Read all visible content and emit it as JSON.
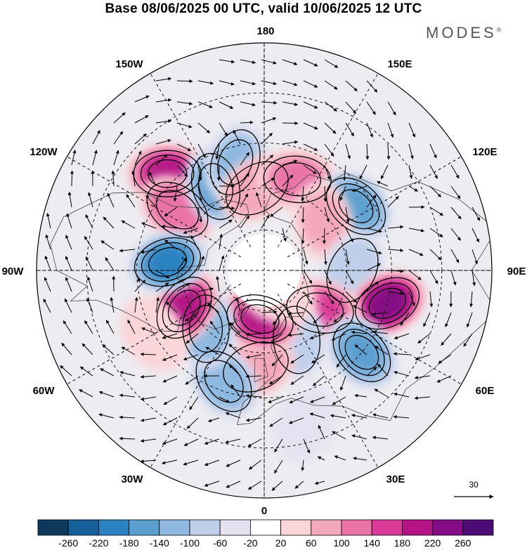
{
  "title": "Base 08/06/2025 00 UTC, valid 10/06/2025 12 UTC",
  "brand": "MODES",
  "brand_mark": "®",
  "map": {
    "projection": "north-polar-stereographic",
    "grid_style": "dashed",
    "meridian_labels": [
      {
        "key": "180",
        "text": "180"
      },
      {
        "key": "150E",
        "text": "150E"
      },
      {
        "key": "120E",
        "text": "120E"
      },
      {
        "key": "90E",
        "text": "90E"
      },
      {
        "key": "60E",
        "text": "60E"
      },
      {
        "key": "30E",
        "text": "30E"
      },
      {
        "key": "0",
        "text": "0"
      },
      {
        "key": "30W",
        "text": "30W"
      },
      {
        "key": "60W",
        "text": "60W"
      },
      {
        "key": "90W",
        "text": "90W"
      },
      {
        "key": "120W",
        "text": "120W"
      },
      {
        "key": "150W",
        "text": "150W"
      }
    ],
    "anomaly_centers": [
      {
        "lon": -135,
        "lat": 42,
        "value": 210
      },
      {
        "lon": -125,
        "lat": 52,
        "value": 150
      },
      {
        "lon": -150,
        "lat": 55,
        "value": -160
      },
      {
        "lon": -165,
        "lat": 50,
        "value": -120
      },
      {
        "lon": -175,
        "lat": 60,
        "value": 110
      },
      {
        "lon": 160,
        "lat": 55,
        "value": 130
      },
      {
        "lon": 125,
        "lat": 50,
        "value": -190
      },
      {
        "lon": 130,
        "lat": 62,
        "value": 80
      },
      {
        "lon": 90,
        "lat": 58,
        "value": -110
      },
      {
        "lon": 75,
        "lat": 45,
        "value": 250
      },
      {
        "lon": 55,
        "lat": 65,
        "value": 160
      },
      {
        "lon": 50,
        "lat": 45,
        "value": -190
      },
      {
        "lon": 25,
        "lat": 62,
        "value": -110
      },
      {
        "lon": 15,
        "lat": 35,
        "value": -70
      },
      {
        "lon": -5,
        "lat": 55,
        "value": 110
      },
      {
        "lon": -5,
        "lat": 72,
        "value": 220
      },
      {
        "lon": -20,
        "lat": 48,
        "value": -150
      },
      {
        "lon": -45,
        "lat": 60,
        "value": -150
      },
      {
        "lon": -65,
        "lat": 58,
        "value": 200
      },
      {
        "lon": -95,
        "lat": 55,
        "value": -210
      },
      {
        "lon": 30,
        "lat": 80,
        "value": 40
      },
      {
        "lon": -60,
        "lat": 45,
        "value": 60
      }
    ]
  },
  "colorbar": {
    "levels": [
      "-260",
      "-220",
      "-180",
      "-140",
      "-100",
      "-60",
      "-20",
      "20",
      "60",
      "100",
      "140",
      "180",
      "220",
      "260"
    ],
    "colors": [
      "#0d3a5c",
      "#15609a",
      "#2a82c0",
      "#5b9fd0",
      "#8fb9e0",
      "#bfcfea",
      "#e4e3f1",
      "#ffffff",
      "#fbd6d9",
      "#f4a8bc",
      "#ea73a8",
      "#d93a97",
      "#b31385",
      "#840c85",
      "#4d0b76"
    ]
  },
  "reference_vector": {
    "label": "30"
  }
}
